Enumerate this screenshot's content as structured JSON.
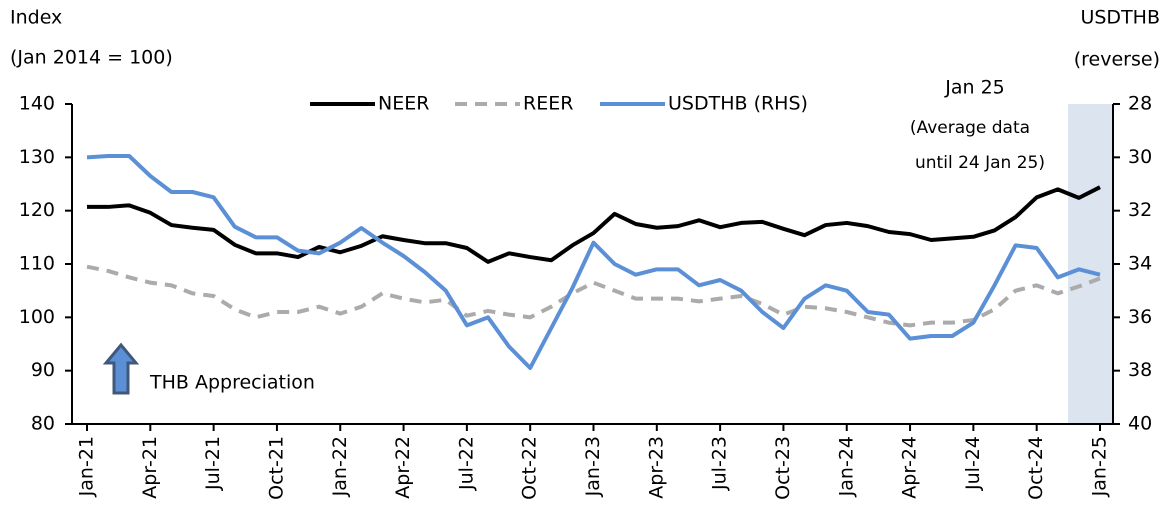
{
  "chart_data": {
    "type": "line",
    "ylabel": [
      "Index",
      "(Jan 2014 = 100)"
    ],
    "y2label": [
      "USDTHB",
      "(reverse)"
    ],
    "annotation": [
      "Jan 25",
      "(Average data",
      "until 24 Jan 25)"
    ],
    "arrow_label": "THB Appreciation",
    "categories": [
      "Jan-21",
      null,
      null,
      "Apr-21",
      null,
      null,
      "Jul-21",
      null,
      null,
      "Oct-21",
      null,
      null,
      "Jan-22",
      null,
      null,
      "Apr-22",
      null,
      null,
      "Jul-22",
      null,
      null,
      "Oct-22",
      null,
      null,
      "Jan-23",
      null,
      null,
      "Apr-23",
      null,
      null,
      "Jul-23",
      null,
      null,
      "Oct-23",
      null,
      null,
      "Jan-24",
      null,
      null,
      "Apr-24",
      null,
      null,
      "Jul-24",
      null,
      null,
      "Oct-24",
      null,
      null,
      "Jan-25"
    ],
    "series": [
      {
        "name": "NEER",
        "color": "#000000",
        "dash": false,
        "values": [
          120.7,
          120.7,
          121,
          119.6,
          117.3,
          116.8,
          116.4,
          113.6,
          112,
          112,
          111.3,
          113.2,
          112.2,
          113.4,
          115.2,
          114.5,
          113.9,
          113.9,
          113,
          110.4,
          112,
          111.3,
          110.7,
          113.5,
          115.8,
          119.4,
          117.5,
          116.8,
          117.1,
          118.2,
          116.9,
          117.7,
          117.9,
          116.6,
          115.4,
          117.3,
          117.7,
          117.1,
          116,
          115.6,
          114.5,
          114.8,
          115.1,
          116.3,
          118.8,
          122.5,
          124,
          122.4,
          124.4
        ]
      },
      {
        "name": "REER",
        "color": "#ababab",
        "dash": true,
        "values": [
          109.5,
          108.7,
          107.5,
          106.5,
          106,
          104.5,
          104,
          101.5,
          100,
          101,
          101,
          102,
          100.7,
          102,
          104.5,
          103.5,
          102.8,
          103.3,
          100.3,
          101.2,
          100.5,
          100,
          102,
          104.5,
          106.5,
          105,
          103.5,
          103.5,
          103.5,
          103,
          103.5,
          104,
          102.5,
          100.5,
          102,
          101.7,
          101,
          100,
          99,
          98.5,
          99,
          99,
          99.5,
          101.5,
          105,
          106,
          104.5,
          105.8,
          107.3
        ]
      },
      {
        "name": "USDTHB (RHS)",
        "color": "#5b8fd6",
        "dash": false,
        "axis": "y2",
        "values": [
          30,
          29.95,
          29.95,
          30.7,
          31.3,
          31.3,
          31.5,
          32.6,
          33,
          33,
          33.5,
          33.6,
          33.2,
          32.65,
          33.2,
          33.7,
          34.3,
          35,
          36.3,
          36,
          37.1,
          37.9,
          36.4,
          34.9,
          33.2,
          34,
          34.4,
          34.2,
          34.2,
          34.8,
          34.6,
          35,
          35.8,
          36.4,
          35.3,
          34.8,
          35,
          35.8,
          35.9,
          36.8,
          36.7,
          36.7,
          36.2,
          34.8,
          33.3,
          33.4,
          34.5,
          34.2,
          34.4
        ]
      }
    ],
    "ylim": [
      80,
      140
    ],
    "yticks": [
      80,
      90,
      100,
      110,
      120,
      130,
      140
    ],
    "y2lim": [
      40,
      28
    ],
    "y2ticks": [
      28,
      30,
      32,
      34,
      36,
      38,
      40
    ],
    "grid": false
  }
}
